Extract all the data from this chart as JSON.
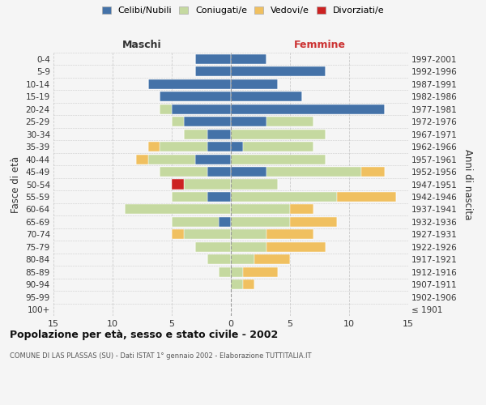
{
  "age_groups": [
    "100+",
    "95-99",
    "90-94",
    "85-89",
    "80-84",
    "75-79",
    "70-74",
    "65-69",
    "60-64",
    "55-59",
    "50-54",
    "45-49",
    "40-44",
    "35-39",
    "30-34",
    "25-29",
    "20-24",
    "15-19",
    "10-14",
    "5-9",
    "0-4"
  ],
  "birth_years": [
    "≤ 1901",
    "1902-1906",
    "1907-1911",
    "1912-1916",
    "1917-1921",
    "1922-1926",
    "1927-1931",
    "1932-1936",
    "1937-1941",
    "1942-1946",
    "1947-1951",
    "1952-1956",
    "1957-1961",
    "1962-1966",
    "1967-1971",
    "1972-1976",
    "1977-1981",
    "1982-1986",
    "1987-1991",
    "1992-1996",
    "1997-2001"
  ],
  "maschi": {
    "celibi": [
      0,
      0,
      0,
      0,
      0,
      0,
      0,
      1,
      0,
      2,
      0,
      2,
      3,
      2,
      2,
      4,
      5,
      6,
      7,
      3,
      3
    ],
    "coniugati": [
      0,
      0,
      0,
      1,
      2,
      3,
      4,
      4,
      9,
      3,
      4,
      4,
      4,
      4,
      2,
      1,
      1,
      0,
      0,
      0,
      0
    ],
    "vedovi": [
      0,
      0,
      0,
      0,
      0,
      0,
      1,
      0,
      0,
      0,
      0,
      0,
      1,
      1,
      0,
      0,
      0,
      0,
      0,
      0,
      0
    ],
    "divorziati": [
      0,
      0,
      0,
      0,
      0,
      0,
      0,
      0,
      0,
      0,
      1,
      0,
      0,
      0,
      0,
      0,
      0,
      0,
      0,
      0,
      0
    ]
  },
  "femmine": {
    "nubili": [
      0,
      0,
      0,
      0,
      0,
      0,
      0,
      0,
      0,
      0,
      0,
      3,
      0,
      1,
      0,
      3,
      13,
      6,
      4,
      8,
      3
    ],
    "coniugate": [
      0,
      0,
      1,
      1,
      2,
      3,
      3,
      5,
      5,
      9,
      4,
      8,
      8,
      6,
      8,
      4,
      0,
      0,
      0,
      0,
      0
    ],
    "vedove": [
      0,
      0,
      1,
      3,
      3,
      5,
      4,
      4,
      2,
      5,
      0,
      2,
      0,
      0,
      0,
      0,
      0,
      0,
      0,
      0,
      0
    ],
    "divorziate": [
      0,
      0,
      0,
      0,
      0,
      0,
      0,
      0,
      0,
      0,
      0,
      0,
      0,
      0,
      0,
      0,
      0,
      0,
      0,
      0,
      0
    ]
  },
  "colors": {
    "celibi": "#4472a8",
    "coniugati": "#c5d9a0",
    "vedovi": "#f0c060",
    "divorziati": "#cc2222"
  },
  "xlim": 15,
  "title": "Popolazione per età, sesso e stato civile - 2002",
  "subtitle": "COMUNE DI LAS PLASSAS (SU) - Dati ISTAT 1° gennaio 2002 - Elaborazione TUTTITALIA.IT",
  "ylabel_left": "Fasce di età",
  "ylabel_right": "Anni di nascita",
  "maschi_label": "Maschi",
  "femmine_label": "Femmine",
  "legend_labels": [
    "Celibi/Nubili",
    "Coniugati/e",
    "Vedovi/e",
    "Divorziati/e"
  ],
  "background_color": "#f5f5f5",
  "grid_color": "#cccccc"
}
